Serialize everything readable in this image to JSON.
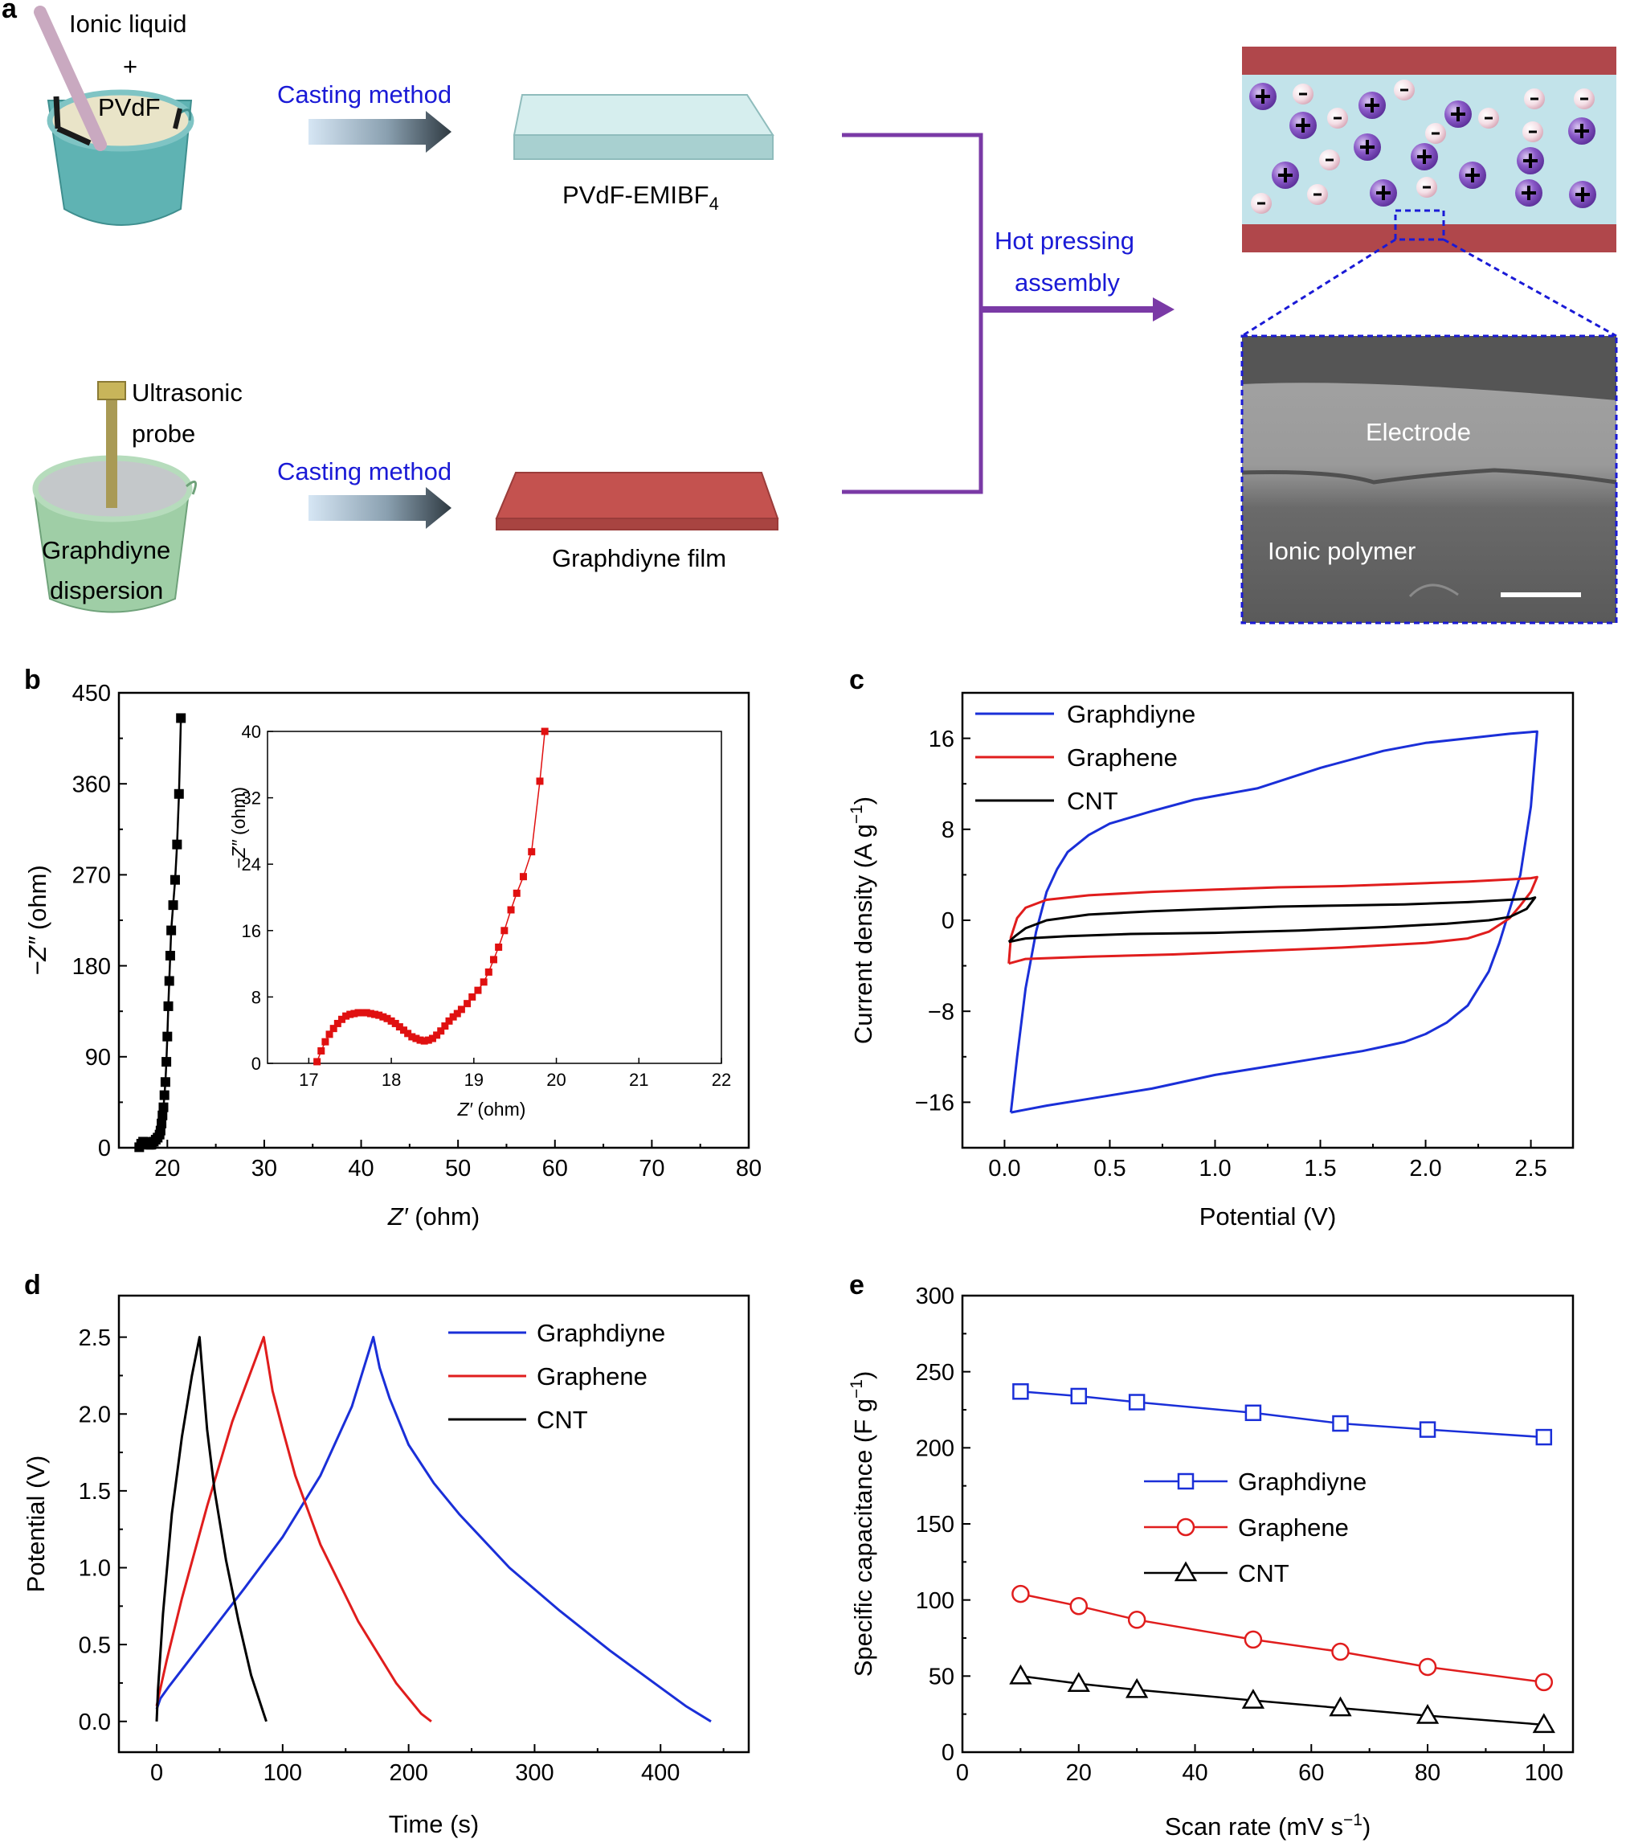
{
  "panel_a": {
    "label": "a",
    "beaker1_text1": "Ionic liquid",
    "beaker1_text2": "+",
    "beaker1_text3": "PVdF",
    "casting1": "Casting method",
    "film1_label_main": "PVdF-EMIBF",
    "film1_label_sub": "4",
    "beaker2_text1": "Ultrasonic",
    "beaker2_text2": "probe",
    "beaker2_text3": "Graphdiyne",
    "beaker2_text4": "dispersion",
    "casting2": "Casting method",
    "film2_label": "Graphdiyne film",
    "hot_pressing_1": "Hot pressing",
    "hot_pressing_2": "assembly",
    "sem_electrode": "Electrode",
    "sem_polymer": "Ionic polymer",
    "colors": {
      "casting_text": "#1a1ad6",
      "purple": "#7a3aa6",
      "film1": "#b7dcdc",
      "film2": "#c0504d",
      "electrode": "#b0474b",
      "electrolyte": "#c2e3ea"
    }
  },
  "chart_data": [
    {
      "panel": "b",
      "type": "scatter",
      "xlabel_main": "Z",
      "xlabel_prime": "′",
      "xlabel_unit": " (ohm)",
      "ylabel_main": "−Z",
      "ylabel_prime": "″",
      "ylabel_unit": " (ohm)",
      "xlim": [
        15,
        80
      ],
      "ylim": [
        0,
        450
      ],
      "xticks": [
        20,
        30,
        40,
        50,
        60,
        70,
        80
      ],
      "yticks": [
        0,
        90,
        180,
        270,
        360,
        450
      ],
      "series": [
        {
          "color": "#000000",
          "x": [
            17.1,
            17.3,
            17.5,
            17.7,
            17.9,
            18.1,
            18.3,
            18.4,
            18.6,
            18.8,
            19.0,
            19.2,
            19.3,
            19.4,
            19.5,
            19.6,
            19.7,
            19.8,
            19.9,
            20.0,
            20.1,
            20.2,
            20.3,
            20.4,
            20.6,
            20.8,
            21.0,
            21.2,
            21.4
          ],
          "y": [
            0.5,
            4,
            6,
            5.8,
            4.5,
            3,
            3,
            3.5,
            6,
            8,
            10,
            13,
            17,
            24,
            32,
            40,
            52,
            65,
            85,
            110,
            140,
            165,
            190,
            215,
            240,
            265,
            300,
            350,
            425
          ]
        }
      ],
      "inset": {
        "xlabel_main": "Z",
        "xlabel_prime": "′",
        "xlabel_unit": " (ohm)",
        "ylabel_main": "−Z",
        "ylabel_prime": "″",
        "ylabel_unit": " (ohm)",
        "xlim": [
          16.5,
          22
        ],
        "ylim": [
          0,
          40
        ],
        "xticks": [
          17,
          18,
          19,
          20,
          21,
          22
        ],
        "yticks": [
          0,
          8,
          16,
          24,
          32,
          40
        ],
        "color": "#e01010",
        "x": [
          17.1,
          17.15,
          17.2,
          17.25,
          17.3,
          17.35,
          17.4,
          17.45,
          17.5,
          17.55,
          17.6,
          17.65,
          17.7,
          17.75,
          17.8,
          17.85,
          17.9,
          17.95,
          18.0,
          18.05,
          18.1,
          18.15,
          18.2,
          18.25,
          18.3,
          18.35,
          18.4,
          18.45,
          18.5,
          18.55,
          18.6,
          18.65,
          18.7,
          18.75,
          18.8,
          18.85,
          18.92,
          18.98,
          19.05,
          19.12,
          19.18,
          19.24,
          19.3,
          19.37,
          19.45,
          19.52,
          19.6,
          19.7,
          19.8,
          19.86
        ],
        "y": [
          0.2,
          1.5,
          2.6,
          3.5,
          4.2,
          4.8,
          5.3,
          5.7,
          5.9,
          6.0,
          6.1,
          6.1,
          6.1,
          6.0,
          5.9,
          5.8,
          5.6,
          5.4,
          5.1,
          4.8,
          4.4,
          4.0,
          3.6,
          3.2,
          3.0,
          2.8,
          2.7,
          2.8,
          3.0,
          3.4,
          3.9,
          4.5,
          5.1,
          5.6,
          6.0,
          6.5,
          7.2,
          8.0,
          8.8,
          9.8,
          11.0,
          12.5,
          14.0,
          16.0,
          18.5,
          20.5,
          22.5,
          25.5,
          34.0,
          40.0
        ]
      }
    },
    {
      "panel": "c",
      "type": "line",
      "xlabel": "Potential (V)",
      "ylabel_main": "Current density (A g",
      "ylabel_sup": "−1",
      "ylabel_end": ")",
      "xlim": [
        -0.2,
        2.7
      ],
      "ylim": [
        -20,
        20
      ],
      "xticks": [
        0.0,
        0.5,
        1.0,
        1.5,
        2.0,
        2.5
      ],
      "yticks": [
        -16,
        -8,
        0,
        8,
        16
      ],
      "legend_position": "top-left",
      "series": [
        {
          "name": "Graphdiyne",
          "color": "#1a2fd8",
          "x": [
            0.03,
            0.06,
            0.1,
            0.15,
            0.2,
            0.25,
            0.3,
            0.4,
            0.5,
            0.7,
            0.9,
            1.2,
            1.5,
            1.8,
            2.0,
            2.2,
            2.4,
            2.53,
            2.5,
            2.45,
            2.4,
            2.35,
            2.3,
            2.2,
            2.1,
            2.0,
            1.9,
            1.8,
            1.7,
            1.5,
            1.2,
            1.0,
            0.7,
            0.4,
            0.2,
            0.03
          ],
          "y": [
            -16.9,
            -12.0,
            -6.0,
            -1.0,
            2.5,
            4.5,
            6.0,
            7.5,
            8.5,
            9.6,
            10.6,
            11.6,
            13.4,
            14.9,
            15.6,
            16.0,
            16.4,
            16.6,
            10.0,
            4.0,
            1.0,
            -2.0,
            -4.5,
            -7.5,
            -9.0,
            -10.0,
            -10.7,
            -11.1,
            -11.5,
            -12.1,
            -13.0,
            -13.6,
            -14.8,
            -15.7,
            -16.3,
            -16.9
          ]
        },
        {
          "name": "Graphene",
          "color": "#e01d1d",
          "x": [
            0.02,
            0.03,
            0.06,
            0.1,
            0.2,
            0.4,
            0.7,
            1.0,
            1.3,
            1.6,
            1.9,
            2.2,
            2.4,
            2.5,
            2.53,
            2.5,
            2.45,
            2.4,
            2.3,
            2.2,
            2.0,
            1.6,
            1.2,
            0.8,
            0.4,
            0.1,
            0.02
          ],
          "y": [
            -3.8,
            -1.5,
            0.2,
            1.1,
            1.8,
            2.2,
            2.5,
            2.7,
            2.9,
            3.0,
            3.2,
            3.4,
            3.6,
            3.7,
            3.8,
            2.5,
            1.3,
            0.2,
            -1.0,
            -1.6,
            -2.0,
            -2.4,
            -2.7,
            -3.0,
            -3.2,
            -3.4,
            -3.8
          ]
        },
        {
          "name": "CNT",
          "color": "#000000",
          "x": [
            0.02,
            0.05,
            0.1,
            0.2,
            0.4,
            0.7,
            1.0,
            1.3,
            1.6,
            1.9,
            2.2,
            2.4,
            2.5,
            2.52,
            2.48,
            2.4,
            2.3,
            2.1,
            1.8,
            1.4,
            1.0,
            0.6,
            0.3,
            0.1,
            0.02
          ],
          "y": [
            -1.9,
            -1.4,
            -0.7,
            0.0,
            0.5,
            0.8,
            1.0,
            1.2,
            1.3,
            1.4,
            1.6,
            1.8,
            1.9,
            2.0,
            1.0,
            0.3,
            0.0,
            -0.3,
            -0.6,
            -0.9,
            -1.1,
            -1.2,
            -1.4,
            -1.6,
            -1.9
          ]
        }
      ]
    },
    {
      "panel": "d",
      "type": "line",
      "xlabel": "Time (s)",
      "ylabel": "Potential (V)",
      "xlim": [
        -30,
        470
      ],
      "ylim": [
        -0.2,
        2.77
      ],
      "xticks": [
        0,
        100,
        200,
        300,
        400
      ],
      "yticks": [
        0.0,
        0.5,
        1.0,
        1.5,
        2.0,
        2.5
      ],
      "legend_position": "top-right",
      "series": [
        {
          "name": "Graphdiyne",
          "color": "#1a2fd8",
          "x": [
            0,
            3,
            10,
            40,
            70,
            100,
            130,
            155,
            172,
            177,
            185,
            200,
            220,
            240,
            280,
            320,
            360,
            400,
            420,
            440
          ],
          "y": [
            0.08,
            0.15,
            0.23,
            0.55,
            0.87,
            1.2,
            1.6,
            2.05,
            2.5,
            2.3,
            2.1,
            1.8,
            1.55,
            1.35,
            1.0,
            0.72,
            0.46,
            0.22,
            0.1,
            0.0
          ]
        },
        {
          "name": "Graphene",
          "color": "#e01d1d",
          "x": [
            0,
            2,
            8,
            20,
            40,
            60,
            85,
            88,
            92,
            100,
            110,
            130,
            160,
            190,
            210,
            218
          ],
          "y": [
            0.1,
            0.18,
            0.4,
            0.8,
            1.4,
            1.95,
            2.5,
            2.35,
            2.15,
            1.9,
            1.6,
            1.15,
            0.65,
            0.25,
            0.05,
            0.0
          ]
        },
        {
          "name": "CNT",
          "color": "#000000",
          "x": [
            0,
            1,
            5,
            12,
            20,
            28,
            34,
            36,
            40,
            46,
            55,
            65,
            75,
            85,
            87
          ],
          "y": [
            0.0,
            0.2,
            0.7,
            1.35,
            1.85,
            2.25,
            2.5,
            2.3,
            1.9,
            1.5,
            1.05,
            0.65,
            0.3,
            0.05,
            0.0
          ]
        }
      ]
    },
    {
      "panel": "e",
      "type": "line",
      "xlabel_main": "Scan rate (mV s",
      "xlabel_sup": "−1",
      "xlabel_end": ")",
      "ylabel_main": "Specific capacitance (F g",
      "ylabel_sup": "−1",
      "ylabel_end": ")",
      "xlim": [
        0,
        105
      ],
      "ylim": [
        0,
        300
      ],
      "xticks": [
        0,
        20,
        40,
        60,
        80,
        100
      ],
      "yticks": [
        0,
        50,
        100,
        150,
        200,
        250,
        300
      ],
      "legend_position": "center",
      "series": [
        {
          "name": "Graphdiyne",
          "color": "#1a2fd8",
          "marker": "square",
          "x": [
            10,
            20,
            30,
            50,
            65,
            80,
            100
          ],
          "y": [
            237,
            234,
            230,
            223,
            216,
            212,
            207
          ]
        },
        {
          "name": "Graphene",
          "color": "#e01d1d",
          "marker": "circle",
          "x": [
            10,
            20,
            30,
            50,
            65,
            80,
            100
          ],
          "y": [
            104,
            96,
            87,
            74,
            66,
            56,
            46
          ]
        },
        {
          "name": "CNT",
          "color": "#000000",
          "marker": "triangle",
          "x": [
            10,
            20,
            30,
            50,
            65,
            80,
            100
          ],
          "y": [
            50,
            45,
            41,
            34,
            29,
            24,
            18
          ]
        }
      ]
    }
  ]
}
